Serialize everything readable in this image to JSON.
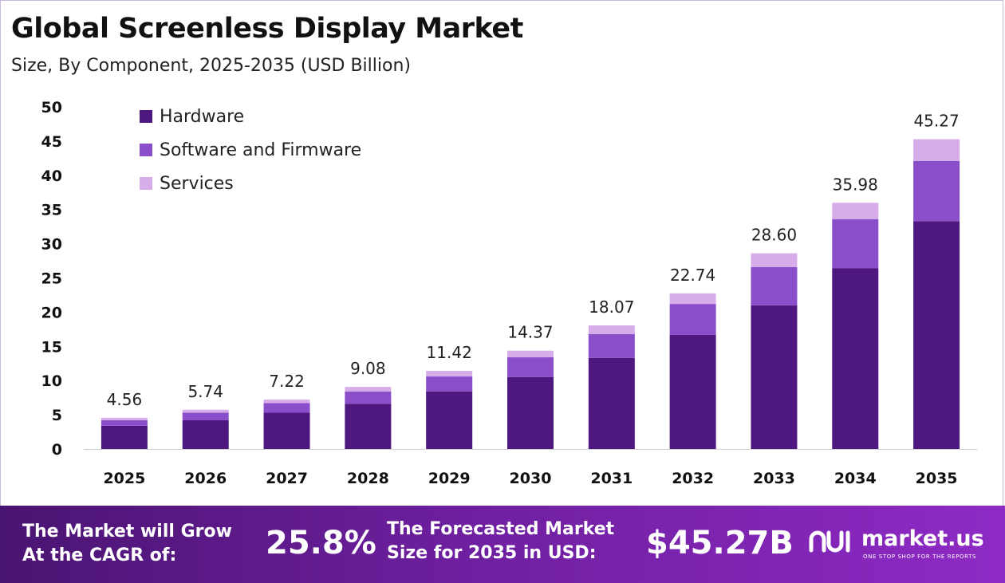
{
  "header": {
    "title": "Global Screenless Display Market",
    "subtitle": "Size, By Component, 2025-2035 (USD Billion)"
  },
  "chart_data": {
    "type": "bar",
    "stacked": true,
    "categories": [
      "2025",
      "2026",
      "2027",
      "2028",
      "2029",
      "2030",
      "2031",
      "2032",
      "2033",
      "2034",
      "2035"
    ],
    "series": [
      {
        "name": "Hardware",
        "color": "#4f1780",
        "values": [
          3.4,
          4.2,
          5.3,
          6.6,
          8.4,
          10.5,
          13.3,
          16.7,
          21.0,
          26.4,
          33.3
        ]
      },
      {
        "name": "Software and Firmware",
        "color": "#8b4ecb",
        "values": [
          0.8,
          1.1,
          1.4,
          1.8,
          2.2,
          2.9,
          3.5,
          4.5,
          5.6,
          7.2,
          8.8
        ]
      },
      {
        "name": "Services",
        "color": "#d6ade9",
        "values": [
          0.36,
          0.44,
          0.52,
          0.68,
          0.82,
          0.97,
          1.27,
          1.54,
          2.0,
          2.38,
          3.17
        ]
      }
    ],
    "totals": [
      "4.56",
      "5.74",
      "7.22",
      "9.08",
      "11.42",
      "14.37",
      "18.07",
      "22.74",
      "28.60",
      "35.98",
      "45.27"
    ],
    "ylim": [
      0,
      50
    ],
    "yticks": [
      0,
      5,
      10,
      15,
      20,
      25,
      30,
      35,
      40,
      45,
      50
    ],
    "legend_position": "top-left",
    "grid": false
  },
  "footer": {
    "cagr_line1": "The Market will Grow",
    "cagr_line2": "At the CAGR of:",
    "cagr_value": "25.8%",
    "forecast_line1": "The Forecasted Market",
    "forecast_line2": "Size for 2035 in USD:",
    "forecast_value": "$45.27B",
    "brand": "market.us",
    "tagline": "ONE STOP SHOP FOR THE REPORTS"
  }
}
